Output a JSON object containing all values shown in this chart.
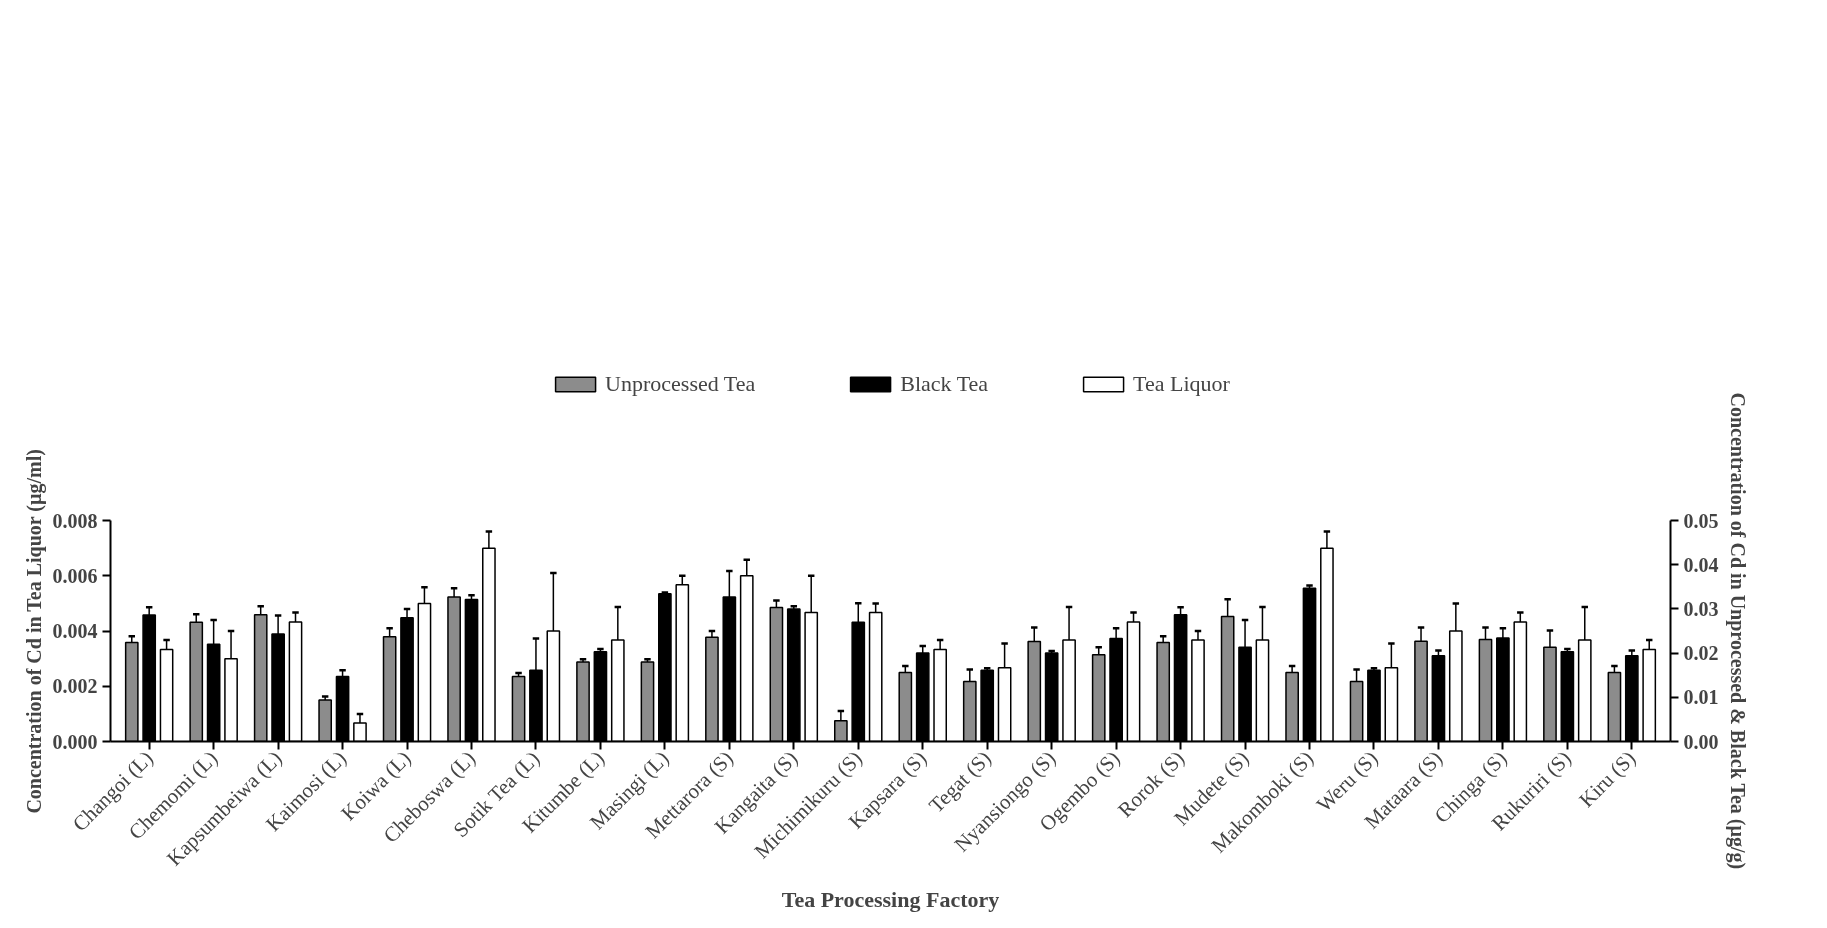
{
  "chart_data": {
    "type": "bar",
    "xlabel": "Tea Processing Factory",
    "ylabel": "Concentration of Cd in Tea Liquor (µg/ml)",
    "y2label": "Concentration of Cd in Unprocessed & Black Tea (µg/g)",
    "categories": [
      "Changoi (L)",
      "Chemomi (L)",
      "Kapsumbeiwa (L)",
      "Kaimosi (L)",
      "Koiwa (L)",
      "Cheboswa (L)",
      "Sotik Tea (L)",
      "Kitumbe (L)",
      "Masingi (L)",
      "Mettarora (S)",
      "Kangaita (S)",
      "Michimikuru (S)",
      "Kapsara (S)",
      "Tegat (S)",
      "Nyansiongo (S)",
      "Ogembo (S)",
      "Rorok (S)",
      "Mudete (S)",
      "Makomboki (S)",
      "Weru (S)",
      "Mataara (S)",
      "Chinga (S)",
      "Rukuriri (S)",
      "Kiru (S)"
    ],
    "series": [
      {
        "name": "Unprocessed Tea",
        "color": "#8c8c8c",
        "axis": "y2",
        "values": [
          0.0224,
          0.027,
          0.0287,
          0.0094,
          0.0237,
          0.0327,
          0.0147,
          0.018,
          0.018,
          0.0236,
          0.0303,
          0.0047,
          0.0156,
          0.0136,
          0.0226,
          0.0196,
          0.0224,
          0.0283,
          0.0156,
          0.0136,
          0.0227,
          0.0231,
          0.0213,
          0.0156
        ],
        "errors": [
          [
            0.0224,
            0.0238
          ],
          [
            0.027,
            0.0288
          ],
          [
            0.0287,
            0.0306
          ],
          [
            0.0094,
            0.0102
          ],
          [
            0.0237,
            0.0256
          ],
          [
            0.0327,
            0.0347
          ],
          [
            0.0147,
            0.0155
          ],
          [
            0.018,
            0.0186
          ],
          [
            0.018,
            0.0186
          ],
          [
            0.0236,
            0.025
          ],
          [
            0.0303,
            0.0319
          ],
          [
            0.0047,
            0.0069
          ],
          [
            0.0156,
            0.0171
          ],
          [
            0.0136,
            0.0163
          ],
          [
            0.0226,
            0.0258
          ],
          [
            0.0196,
            0.0213
          ],
          [
            0.0224,
            0.0238
          ],
          [
            0.0283,
            0.0322
          ],
          [
            0.0156,
            0.0171
          ],
          [
            0.0136,
            0.0163
          ],
          [
            0.0227,
            0.0258
          ],
          [
            0.0231,
            0.0258
          ],
          [
            0.0213,
            0.0251
          ],
          [
            0.0156,
            0.0171
          ]
        ]
      },
      {
        "name": "Black Tea",
        "color": "#000000",
        "axis": "y2",
        "values": [
          0.0286,
          0.022,
          0.0243,
          0.0147,
          0.028,
          0.0321,
          0.0161,
          0.0203,
          0.0334,
          0.0327,
          0.03,
          0.027,
          0.02,
          0.0161,
          0.02,
          0.0233,
          0.0287,
          0.0213,
          0.0347,
          0.0161,
          0.0194,
          0.0234,
          0.0203,
          0.0194
        ],
        "errors": [
          [
            0.0286,
            0.0304
          ],
          [
            0.022,
            0.0275
          ],
          [
            0.0243,
            0.0285
          ],
          [
            0.0147,
            0.0161
          ],
          [
            0.028,
            0.03
          ],
          [
            0.0321,
            0.0331
          ],
          [
            0.0161,
            0.0233
          ],
          [
            0.0203,
            0.0209
          ],
          [
            0.0334,
            0.0337
          ],
          [
            0.0327,
            0.0386
          ],
          [
            0.03,
            0.0306
          ],
          [
            0.027,
            0.0313
          ],
          [
            0.02,
            0.0216
          ],
          [
            0.0161,
            0.0166
          ],
          [
            0.02,
            0.0205
          ],
          [
            0.0233,
            0.0256
          ],
          [
            0.0287,
            0.0304
          ],
          [
            0.0213,
            0.0275
          ],
          [
            0.0347,
            0.0353
          ],
          [
            0.0161,
            0.0166
          ],
          [
            0.0194,
            0.0206
          ],
          [
            0.0234,
            0.0256
          ],
          [
            0.0203,
            0.0209
          ],
          [
            0.0194,
            0.0206
          ]
        ]
      },
      {
        "name": "Tea Liquor",
        "color": "#ffffff",
        "values": [
          0.00333,
          0.003,
          0.00433,
          0.00067,
          0.005,
          0.007,
          0.004,
          0.00367,
          0.00567,
          0.006,
          0.00467,
          0.00467,
          0.00333,
          0.00267,
          0.00367,
          0.00433,
          0.00367,
          0.00367,
          0.007,
          0.00267,
          0.004,
          0.00433,
          0.00367,
          0.00333
        ],
        "errors": [
          [
            0.00333,
            0.00367
          ],
          [
            0.003,
            0.004
          ],
          [
            0.00433,
            0.00467
          ],
          [
            0.00067,
            0.001
          ],
          [
            0.005,
            0.00558
          ],
          [
            0.007,
            0.0076
          ],
          [
            0.004,
            0.0061
          ],
          [
            0.00367,
            0.00487
          ],
          [
            0.00567,
            0.006
          ],
          [
            0.006,
            0.00658
          ],
          [
            0.00467,
            0.006
          ],
          [
            0.00467,
            0.005
          ],
          [
            0.00333,
            0.00367
          ],
          [
            0.00267,
            0.00355
          ],
          [
            0.00367,
            0.00487
          ],
          [
            0.00433,
            0.00467
          ],
          [
            0.00367,
            0.004
          ],
          [
            0.00367,
            0.00487
          ],
          [
            0.007,
            0.0076
          ],
          [
            0.00267,
            0.00355
          ],
          [
            0.004,
            0.005
          ],
          [
            0.00433,
            0.00467
          ],
          [
            0.00367,
            0.00487
          ],
          [
            0.00333,
            0.00367
          ]
        ]
      }
    ],
    "ylim": [
      0,
      0.008
    ],
    "yticks": [
      {
        "value": 0,
        "label": "0.000"
      },
      {
        "value": 0.002,
        "label": "0.002"
      },
      {
        "value": 0.004,
        "label": "0.004"
      },
      {
        "value": 0.006,
        "label": "0.006"
      },
      {
        "value": 0.008,
        "label": "0.008"
      }
    ],
    "y2lim": [
      0,
      0.05
    ],
    "y2ticks": [
      {
        "value": 0,
        "label": "0.00"
      },
      {
        "value": 0.01,
        "label": "0.01"
      },
      {
        "value": 0.02,
        "label": "0.02"
      },
      {
        "value": 0.03,
        "label": "0.03"
      },
      {
        "value": 0.04,
        "label": "0.04"
      },
      {
        "value": 0.05,
        "label": "0.05"
      }
    ],
    "legend": "top",
    "grid": false
  }
}
